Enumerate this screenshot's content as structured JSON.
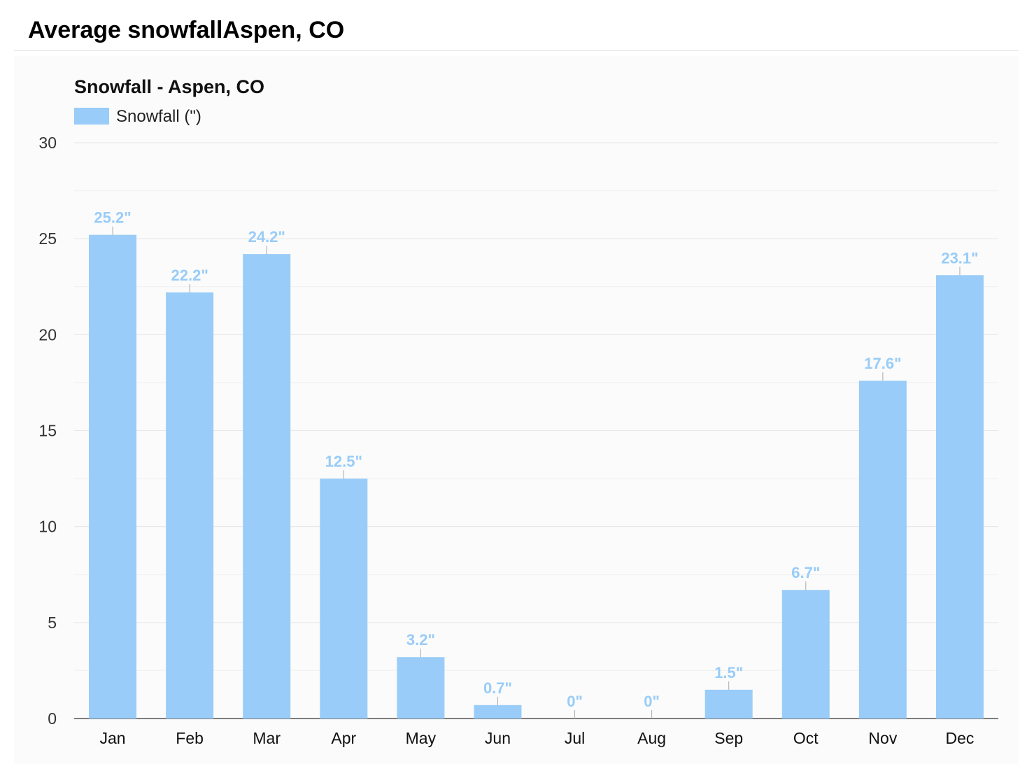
{
  "page_title": "Average snowfallAspen, CO",
  "chart_data": {
    "type": "bar",
    "title": "Snowfall - Aspen, CO",
    "categories": [
      "Jan",
      "Feb",
      "Mar",
      "Apr",
      "May",
      "Jun",
      "Jul",
      "Aug",
      "Sep",
      "Oct",
      "Nov",
      "Dec"
    ],
    "series": [
      {
        "name": "Snowfall (\")",
        "values": [
          25.2,
          22.2,
          24.2,
          12.5,
          3.2,
          0.7,
          0,
          0,
          1.5,
          6.7,
          17.6,
          23.1
        ]
      }
    ],
    "data_labels": [
      "25.2\"",
      "22.2\"",
      "24.2\"",
      "12.5\"",
      "3.2\"",
      "0.7\"",
      "0\"",
      "0\"",
      "1.5\"",
      "6.7\"",
      "17.6\"",
      "23.1\""
    ],
    "ylim": [
      0,
      30
    ],
    "yticks": [
      0,
      5,
      10,
      15,
      20,
      25,
      30
    ],
    "grid": true,
    "legend_position": "top-left",
    "colors": {
      "bar": "#99ccf8",
      "label": "#99ccf8",
      "grid": "#e6e6e6",
      "axis": "#555555"
    }
  }
}
